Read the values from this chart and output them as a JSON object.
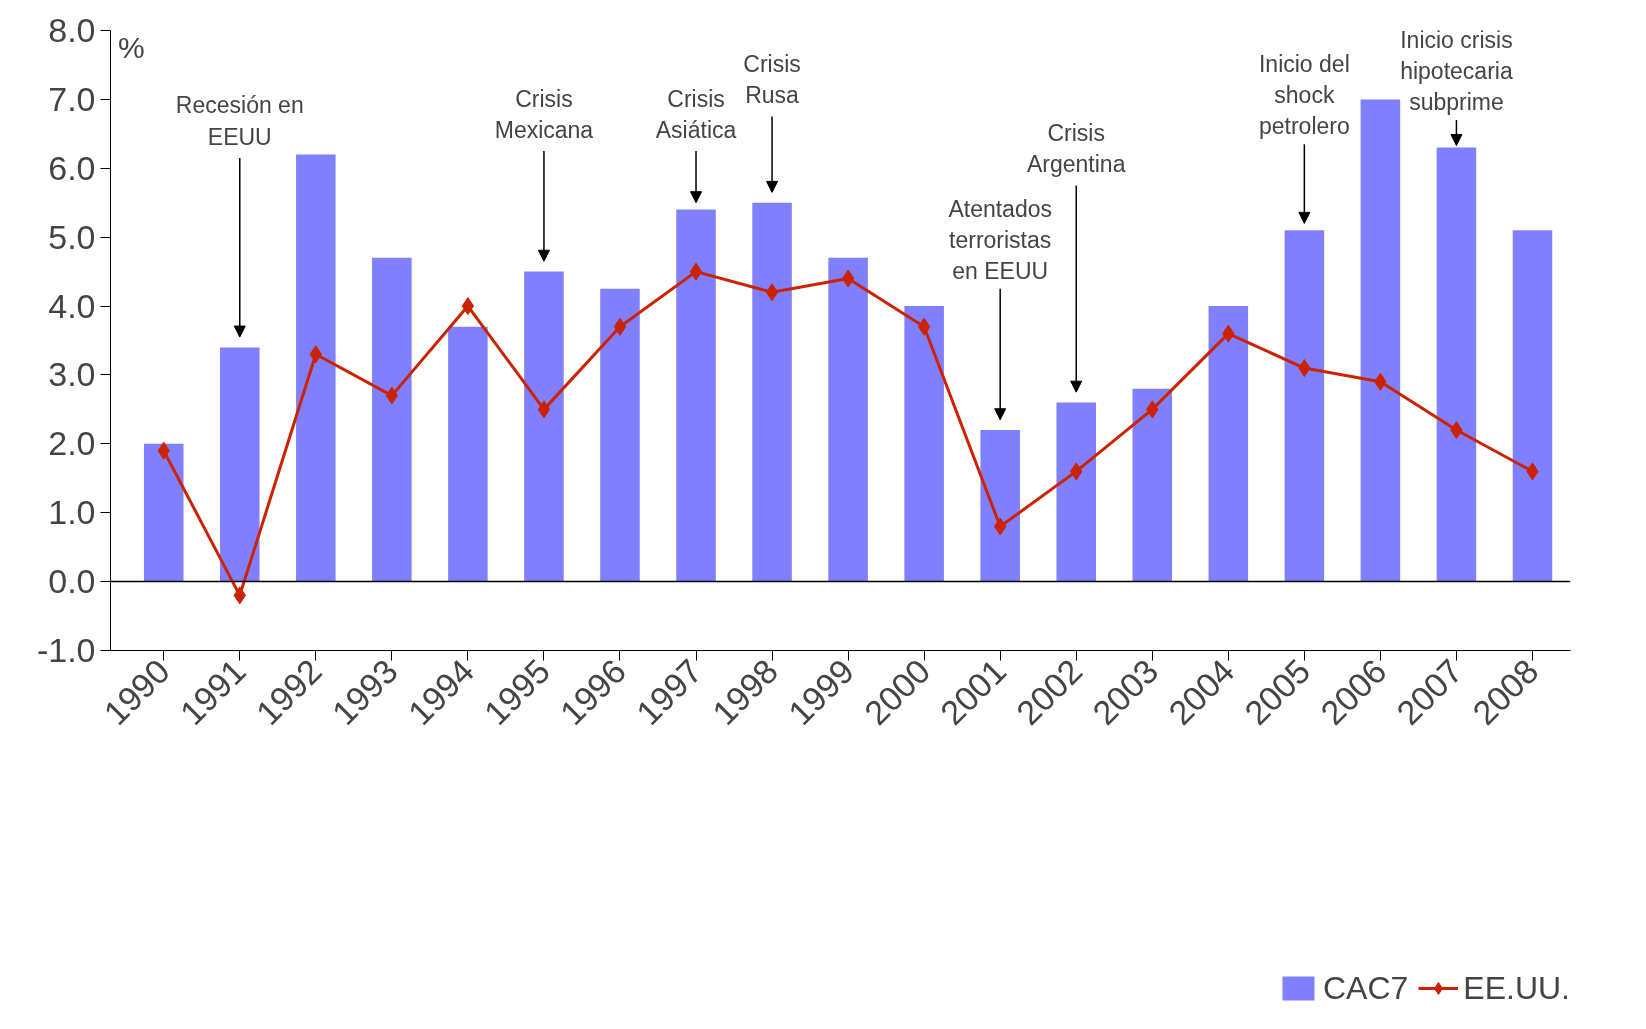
{
  "chart_data": {
    "type": "bar",
    "ylabel": "%",
    "categories": [
      "1990",
      "1991",
      "1992",
      "1993",
      "1994",
      "1995",
      "1996",
      "1997",
      "1998",
      "1999",
      "2000",
      "2001",
      "2002",
      "2003",
      "2004",
      "2005",
      "2006",
      "2007",
      "2008"
    ],
    "series": [
      {
        "name": "CAC7",
        "color": "#8080ff",
        "values": [
          2.0,
          3.4,
          6.2,
          4.7,
          3.7,
          4.5,
          4.25,
          5.4,
          5.5,
          4.7,
          4.0,
          2.2,
          2.6,
          2.8,
          4.0,
          5.1,
          7.0,
          6.3,
          5.1
        ]
      },
      {
        "name": "EE.UU.",
        "type": "line",
        "color": "#cc2200",
        "marker": "diamond",
        "values": [
          1.9,
          -0.2,
          3.3,
          2.7,
          4.0,
          2.5,
          3.7,
          4.5,
          4.2,
          4.4,
          3.7,
          0.8,
          1.6,
          2.5,
          3.6,
          3.1,
          2.9,
          2.2,
          1.6
        ]
      }
    ],
    "ylim": [
      -1.0,
      8.0
    ],
    "yticks": [
      {
        "value": -1,
        "label": "-1.0"
      },
      {
        "value": 0,
        "label": "0.0"
      },
      {
        "value": 1,
        "label": "1.0"
      },
      {
        "value": 2,
        "label": "2.0"
      },
      {
        "value": 3,
        "label": "3.0"
      },
      {
        "value": 4,
        "label": "4.0"
      },
      {
        "value": 5,
        "label": "5.0"
      },
      {
        "value": 6,
        "label": "6.0"
      },
      {
        "value": 7,
        "label": "7.0"
      },
      {
        "value": 8,
        "label": "8.0"
      }
    ],
    "annotations": [
      "Recesión en\nEEUU",
      "Crisis\nMexicana",
      "Crisis\nAsiática",
      "Crisis\nRusa",
      "Atentados\nterroristas\nen EEUU",
      "Crisis\nArgentina",
      "Inicio del\nshock\npetrolero",
      "Inicio crisis\nhipotecaria\nsubprime"
    ],
    "ref_lines": [
      {
        "axis": "y",
        "value": 0,
        "color": "#000000"
      }
    ],
    "grid": false,
    "legend": "bottom"
  }
}
